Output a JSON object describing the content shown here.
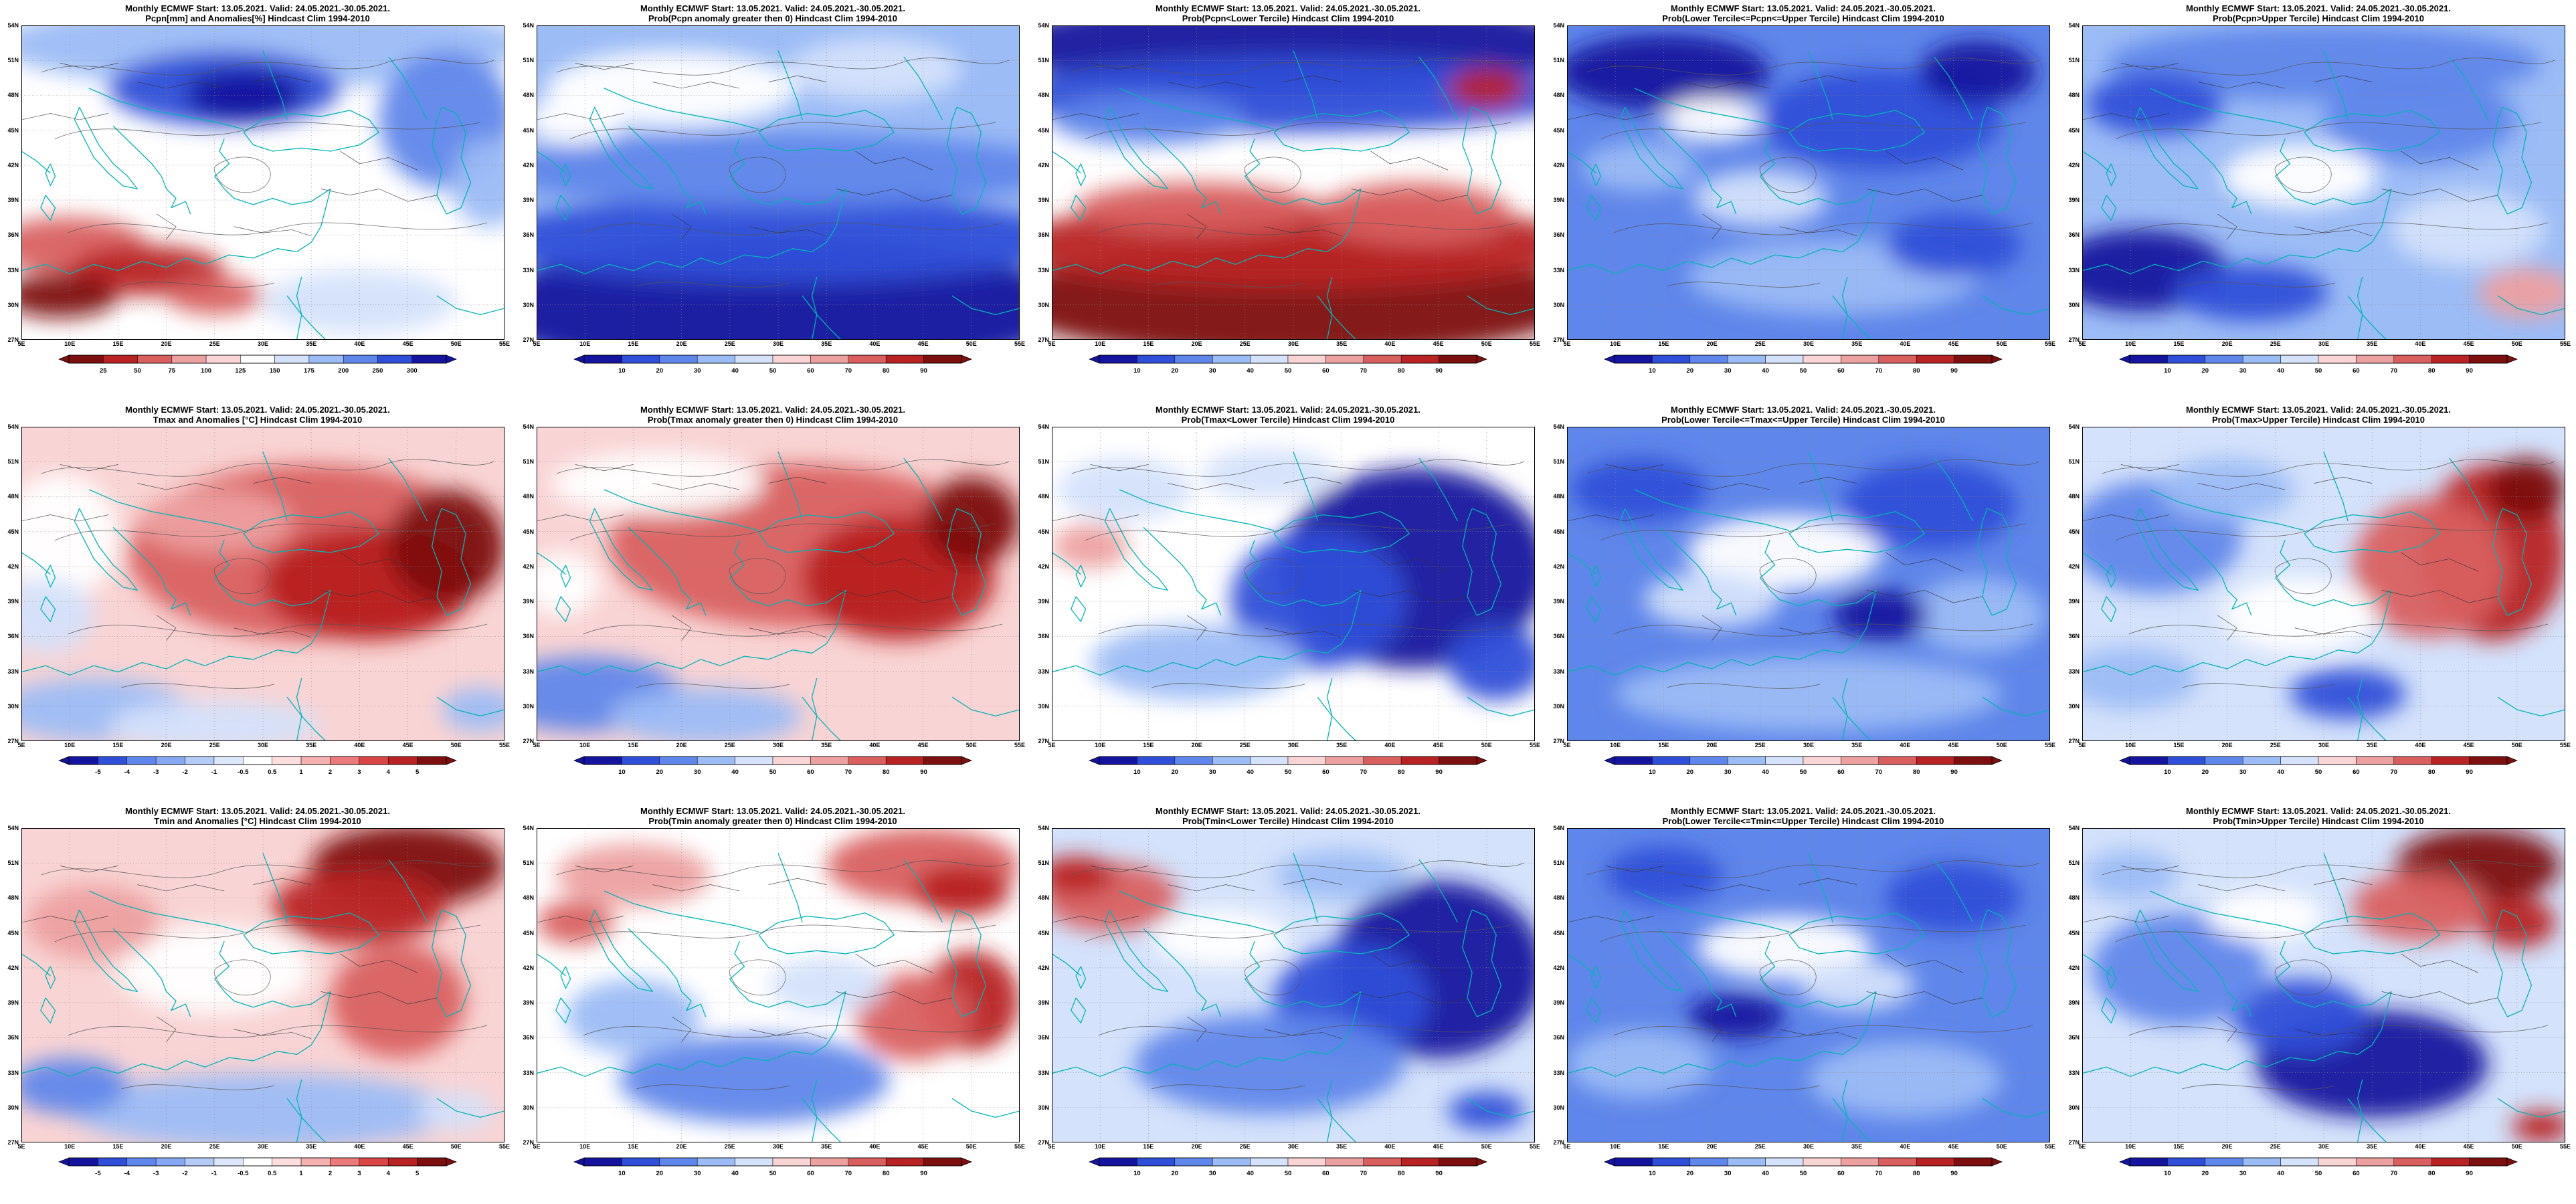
{
  "figure": {
    "header": "Monthly ECMWF Start: 13.05.2021. Valid: 24.05.2021.-30.05.2021.",
    "lat_ticks": [
      "54N",
      "51N",
      "48N",
      "45N",
      "42N",
      "39N",
      "36N",
      "33N",
      "30N",
      "27N"
    ],
    "lon_ticks": [
      "5E",
      "10E",
      "15E",
      "20E",
      "25E",
      "30E",
      "35E",
      "40E",
      "45E",
      "50E",
      "55E"
    ]
  },
  "colorbars": {
    "pcpn_anom": {
      "ticks": [
        "25",
        "50",
        "75",
        "100",
        "125",
        "150",
        "175",
        "200",
        "250",
        "300"
      ],
      "colors": [
        "#7d0f0f",
        "#b82222",
        "#d95f5f",
        "#eda0a0",
        "#f9d4d4",
        "#ffffff",
        "#d4e2fb",
        "#9cbcf6",
        "#5f86ea",
        "#2f4fd8",
        "#14149e"
      ]
    },
    "prob": {
      "ticks": [
        "10",
        "20",
        "30",
        "40",
        "50",
        "60",
        "70",
        "80",
        "90"
      ],
      "colors": [
        "#14149e",
        "#2f4fd8",
        "#5f86ea",
        "#9cbcf6",
        "#d4e2fb",
        "#f9d4d4",
        "#eda0a0",
        "#d95f5f",
        "#b82222",
        "#7d0f0f"
      ]
    },
    "temp_anom": {
      "ticks": [
        "-5",
        "-4",
        "-3",
        "-2",
        "-1",
        "-0.5",
        "0.5",
        "1",
        "2",
        "3",
        "4",
        "5"
      ],
      "colors": [
        "#14149e",
        "#2f4fd8",
        "#5f86ea",
        "#86a8f2",
        "#b4cbf8",
        "#dce7fc",
        "#ffffff",
        "#fcdede",
        "#f5b0b0",
        "#ec7a7a",
        "#d94444",
        "#b82222",
        "#7d0f0f"
      ]
    }
  },
  "panels": [
    {
      "subtitle": "Pcpn[mm] and Anomalies[%] Hindcast Clim 1994-2010",
      "colorbar": "pcpn_anom",
      "shading": {
        "base": "#ffffff",
        "blobs": [
          [
            50,
            6,
            55,
            14,
            "#9cbcf6"
          ],
          [
            42,
            20,
            24,
            12,
            "#2f4fd8"
          ],
          [
            46,
            22,
            12,
            8,
            "#14149e"
          ],
          [
            88,
            30,
            14,
            22,
            "#5f86ea"
          ],
          [
            97,
            50,
            8,
            14,
            "#9cbcf6"
          ],
          [
            10,
            70,
            16,
            9,
            "#d95f5f"
          ],
          [
            26,
            78,
            16,
            8,
            "#b82222"
          ],
          [
            8,
            86,
            12,
            7,
            "#7d0f0f"
          ],
          [
            40,
            86,
            10,
            6,
            "#d95f5f"
          ],
          [
            70,
            88,
            20,
            10,
            "#d4e2fb"
          ]
        ]
      }
    },
    {
      "subtitle": "Prob(Pcpn anomaly greater then 0) Hindcast Clim 1994-2010",
      "colorbar": "prob",
      "shading": {
        "base": "#9cbcf6",
        "blobs": [
          [
            50,
            90,
            60,
            22,
            "#14149e"
          ],
          [
            50,
            68,
            60,
            14,
            "#2f4fd8"
          ],
          [
            50,
            46,
            60,
            12,
            "#5f86ea"
          ],
          [
            28,
            20,
            26,
            12,
            "#ffffff"
          ],
          [
            70,
            14,
            18,
            10,
            "#d4e2fb"
          ],
          [
            8,
            30,
            10,
            8,
            "#ffffff"
          ]
        ]
      }
    },
    {
      "subtitle": "Prob(Pcpn<Lower Tercile) Hindcast Clim 1994-2010",
      "colorbar": "prob",
      "shading": {
        "base": "#ffffff",
        "blobs": [
          [
            50,
            6,
            60,
            16,
            "#14149e"
          ],
          [
            50,
            22,
            60,
            12,
            "#2f4fd8"
          ],
          [
            20,
            30,
            20,
            8,
            "#5f86ea"
          ],
          [
            50,
            88,
            60,
            18,
            "#7d0f0f"
          ],
          [
            50,
            70,
            60,
            14,
            "#b82222"
          ],
          [
            30,
            58,
            25,
            8,
            "#d95f5f"
          ],
          [
            75,
            60,
            20,
            10,
            "#d95f5f"
          ],
          [
            90,
            20,
            8,
            6,
            "#b82222"
          ]
        ]
      }
    },
    {
      "subtitle": "Prob(Lower Tercile<=Pcpn<=Upper Tercile) Hindcast Clim 1994-2010",
      "colorbar": "prob",
      "shading": {
        "base": "#5f86ea",
        "blobs": [
          [
            20,
            15,
            22,
            12,
            "#14149e"
          ],
          [
            65,
            30,
            25,
            16,
            "#2f4fd8"
          ],
          [
            85,
            15,
            12,
            10,
            "#14149e"
          ],
          [
            40,
            55,
            14,
            9,
            "#d4e2fb"
          ],
          [
            15,
            45,
            12,
            8,
            "#9cbcf6"
          ],
          [
            55,
            80,
            30,
            12,
            "#9cbcf6"
          ],
          [
            80,
            70,
            14,
            10,
            "#2f4fd8"
          ],
          [
            30,
            30,
            10,
            7,
            "#ffffff"
          ]
        ]
      }
    },
    {
      "subtitle": "Prob(Pcpn>Upper Tercile) Hindcast Clim 1994-2010",
      "colorbar": "prob",
      "shading": {
        "base": "#9cbcf6",
        "blobs": [
          [
            50,
            12,
            45,
            12,
            "#5f86ea"
          ],
          [
            15,
            25,
            14,
            10,
            "#2f4fd8"
          ],
          [
            70,
            30,
            20,
            14,
            "#5f86ea"
          ],
          [
            45,
            48,
            16,
            10,
            "#ffffff"
          ],
          [
            12,
            78,
            18,
            13,
            "#14149e"
          ],
          [
            35,
            85,
            16,
            9,
            "#2f4fd8"
          ],
          [
            80,
            65,
            16,
            12,
            "#d4e2fb"
          ],
          [
            92,
            85,
            10,
            8,
            "#eda0a0"
          ]
        ]
      }
    },
    {
      "subtitle": "Tmax and Anomalies [°C] Hindcast Clim 1994-2010",
      "colorbar": "temp_anom",
      "shading": {
        "base": "#f9d4d4",
        "blobs": [
          [
            60,
            40,
            38,
            28,
            "#d95f5f"
          ],
          [
            72,
            50,
            22,
            18,
            "#b82222"
          ],
          [
            88,
            38,
            12,
            18,
            "#7d0f0f"
          ],
          [
            40,
            30,
            16,
            10,
            "#eda0a0"
          ],
          [
            8,
            35,
            12,
            20,
            "#ffffff"
          ],
          [
            5,
            60,
            10,
            12,
            "#d4e2fb"
          ],
          [
            15,
            90,
            20,
            10,
            "#9cbcf6"
          ],
          [
            40,
            95,
            22,
            8,
            "#d4e2fb"
          ],
          [
            95,
            90,
            8,
            7,
            "#9cbcf6"
          ]
        ]
      }
    },
    {
      "subtitle": "Prob(Tmax anomaly greater then 0) Hindcast Clim 1994-2010",
      "colorbar": "prob",
      "shading": {
        "base": "#f9d4d4",
        "blobs": [
          [
            55,
            38,
            40,
            26,
            "#d95f5f"
          ],
          [
            75,
            48,
            20,
            20,
            "#b82222"
          ],
          [
            90,
            30,
            10,
            14,
            "#7d0f0f"
          ],
          [
            25,
            18,
            22,
            10,
            "#ffffff"
          ],
          [
            10,
            85,
            20,
            12,
            "#5f86ea"
          ],
          [
            35,
            92,
            20,
            9,
            "#9cbcf6"
          ],
          [
            5,
            50,
            8,
            10,
            "#ffffff"
          ]
        ]
      }
    },
    {
      "subtitle": "Prob(Tmax<Lower Tercile) Hindcast Clim 1994-2010",
      "colorbar": "prob",
      "shading": {
        "base": "#ffffff",
        "blobs": [
          [
            75,
            45,
            28,
            32,
            "#14149e"
          ],
          [
            55,
            55,
            18,
            22,
            "#2f4fd8"
          ],
          [
            92,
            75,
            10,
            12,
            "#2f4fd8"
          ],
          [
            30,
            75,
            22,
            12,
            "#9cbcf6"
          ],
          [
            15,
            20,
            14,
            10,
            "#d4e2fb"
          ],
          [
            8,
            38,
            8,
            7,
            "#eda0a0"
          ],
          [
            45,
            15,
            14,
            8,
            "#d4e2fb"
          ]
        ]
      }
    },
    {
      "subtitle": "Prob(Lower Tercile<=Tmax<=Upper Tercile) Hindcast Clim 1994-2010",
      "colorbar": "prob",
      "shading": {
        "base": "#5f86ea",
        "blobs": [
          [
            45,
            40,
            20,
            12,
            "#ffffff"
          ],
          [
            30,
            55,
            14,
            9,
            "#d4e2fb"
          ],
          [
            75,
            25,
            18,
            14,
            "#2f4fd8"
          ],
          [
            15,
            20,
            14,
            10,
            "#2f4fd8"
          ],
          [
            85,
            60,
            14,
            12,
            "#9cbcf6"
          ],
          [
            50,
            85,
            40,
            12,
            "#9cbcf6"
          ],
          [
            65,
            60,
            10,
            8,
            "#14149e"
          ]
        ]
      }
    },
    {
      "subtitle": "Prob(Tmax>Upper Tercile) Hindcast Clim 1994-2010",
      "colorbar": "prob",
      "shading": {
        "base": "#d4e2fb",
        "blobs": [
          [
            85,
            40,
            15,
            28,
            "#b82222"
          ],
          [
            72,
            45,
            16,
            22,
            "#d95f5f"
          ],
          [
            92,
            20,
            8,
            10,
            "#7d0f0f"
          ],
          [
            15,
            35,
            18,
            18,
            "#5f86ea"
          ],
          [
            30,
            20,
            14,
            10,
            "#9cbcf6"
          ],
          [
            45,
            60,
            16,
            12,
            "#ffffff"
          ],
          [
            55,
            85,
            12,
            8,
            "#2f4fd8"
          ],
          [
            10,
            80,
            14,
            10,
            "#9cbcf6"
          ]
        ]
      }
    },
    {
      "subtitle": "Tmin and Anomalies [°C] Hindcast Clim 1994-2010",
      "colorbar": "temp_anom",
      "shading": {
        "base": "#f9d4d4",
        "blobs": [
          [
            80,
            12,
            20,
            13,
            "#7d0f0f"
          ],
          [
            70,
            25,
            18,
            12,
            "#b82222"
          ],
          [
            78,
            55,
            14,
            18,
            "#d95f5f"
          ],
          [
            40,
            45,
            20,
            14,
            "#ffffff"
          ],
          [
            15,
            30,
            14,
            12,
            "#eda0a0"
          ],
          [
            50,
            90,
            40,
            12,
            "#9cbcf6"
          ],
          [
            10,
            82,
            12,
            9,
            "#5f86ea"
          ],
          [
            90,
            90,
            8,
            6,
            "#d4e2fb"
          ]
        ]
      }
    },
    {
      "subtitle": "Prob(Tmin anomaly greater then 0) Hindcast Clim 1994-2010",
      "colorbar": "prob",
      "shading": {
        "base": "#ffffff",
        "blobs": [
          [
            80,
            12,
            20,
            12,
            "#d95f5f"
          ],
          [
            88,
            20,
            10,
            8,
            "#b82222"
          ],
          [
            90,
            55,
            10,
            16,
            "#b82222"
          ],
          [
            78,
            60,
            12,
            14,
            "#d95f5f"
          ],
          [
            20,
            15,
            16,
            10,
            "#eda0a0"
          ],
          [
            8,
            30,
            8,
            7,
            "#d95f5f"
          ],
          [
            45,
            80,
            28,
            14,
            "#5f86ea"
          ],
          [
            20,
            60,
            14,
            12,
            "#9cbcf6"
          ],
          [
            60,
            50,
            12,
            9,
            "#d4e2fb"
          ]
        ]
      }
    },
    {
      "subtitle": "Prob(Tmin<Lower Tercile) Hindcast Clim 1994-2010",
      "colorbar": "prob",
      "shading": {
        "base": "#d4e2fb",
        "blobs": [
          [
            12,
            22,
            14,
            11,
            "#d95f5f"
          ],
          [
            5,
            15,
            8,
            6,
            "#b82222"
          ],
          [
            80,
            45,
            22,
            28,
            "#14149e"
          ],
          [
            62,
            55,
            16,
            18,
            "#2f4fd8"
          ],
          [
            45,
            75,
            28,
            16,
            "#5f86ea"
          ],
          [
            35,
            35,
            14,
            9,
            "#ffffff"
          ],
          [
            60,
            15,
            14,
            8,
            "#9cbcf6"
          ],
          [
            90,
            90,
            8,
            6,
            "#2f4fd8"
          ]
        ]
      }
    },
    {
      "subtitle": "Prob(Lower Tercile<=Tmin<=Upper Tercile) Hindcast Clim 1994-2010",
      "colorbar": "prob",
      "shading": {
        "base": "#5f86ea",
        "blobs": [
          [
            45,
            38,
            18,
            10,
            "#ffffff"
          ],
          [
            60,
            50,
            12,
            8,
            "#d4e2fb"
          ],
          [
            80,
            22,
            14,
            11,
            "#2f4fd8"
          ],
          [
            20,
            15,
            12,
            9,
            "#2f4fd8"
          ],
          [
            15,
            75,
            15,
            11,
            "#9cbcf6"
          ],
          [
            70,
            80,
            20,
            12,
            "#9cbcf6"
          ],
          [
            35,
            60,
            10,
            7,
            "#14149e"
          ]
        ]
      }
    },
    {
      "subtitle": "Prob(Tmin>Upper Tercile) Hindcast Clim 1994-2010",
      "colorbar": "prob",
      "shading": {
        "base": "#d4e2fb",
        "blobs": [
          [
            82,
            12,
            17,
            12,
            "#7d0f0f"
          ],
          [
            70,
            25,
            14,
            11,
            "#d95f5f"
          ],
          [
            90,
            30,
            8,
            8,
            "#b82222"
          ],
          [
            60,
            75,
            24,
            17,
            "#14149e"
          ],
          [
            45,
            60,
            14,
            12,
            "#2f4fd8"
          ],
          [
            20,
            45,
            18,
            18,
            "#5f86ea"
          ],
          [
            38,
            28,
            12,
            8,
            "#ffffff"
          ],
          [
            10,
            15,
            10,
            8,
            "#9cbcf6"
          ],
          [
            95,
            95,
            6,
            5,
            "#b82222"
          ]
        ]
      }
    }
  ]
}
